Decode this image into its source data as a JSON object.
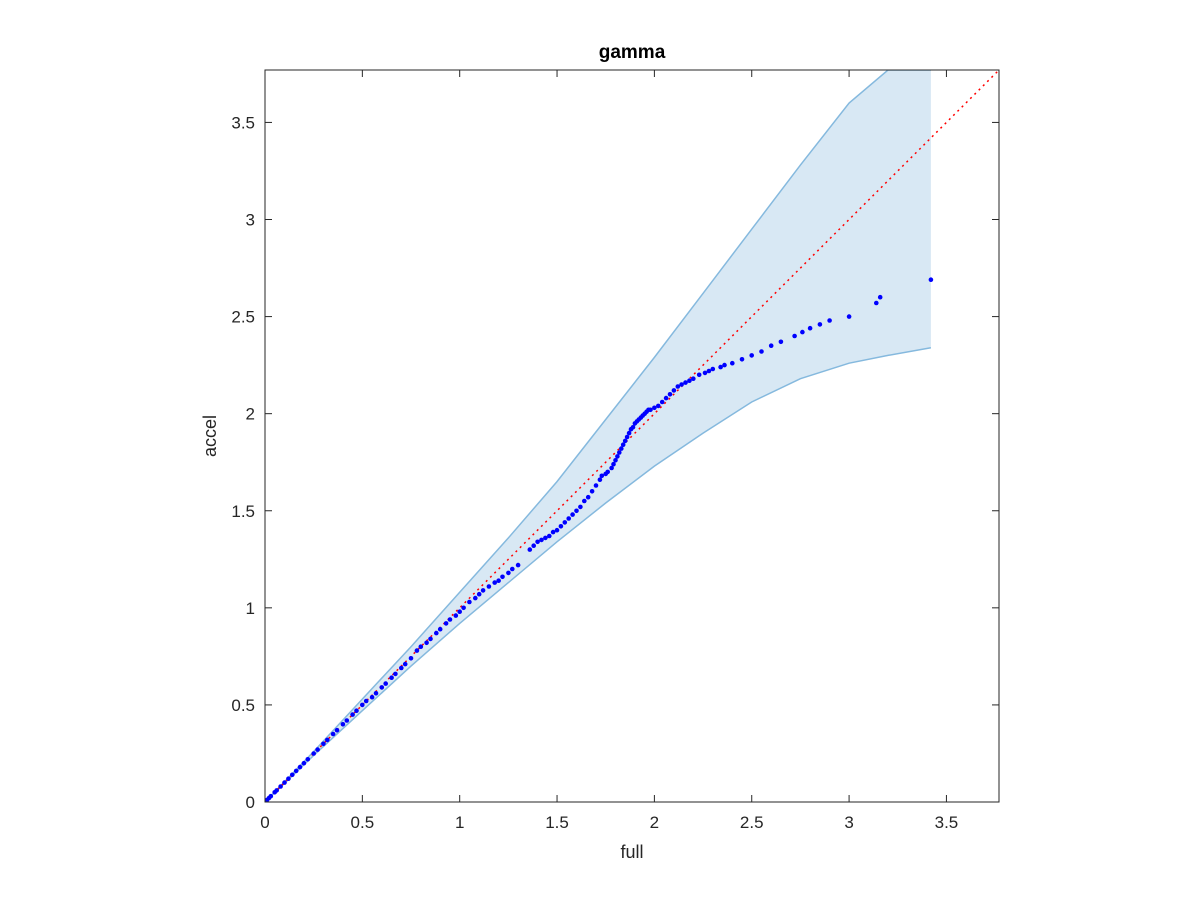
{
  "chart_data": {
    "type": "scatter",
    "title": "gamma",
    "xlabel": "full",
    "ylabel": "accel",
    "xlim": [
      0,
      3.77
    ],
    "ylim": [
      0,
      3.77
    ],
    "xticks": [
      0,
      0.5,
      1,
      1.5,
      2,
      2.5,
      3,
      3.5
    ],
    "yticks": [
      0,
      0.5,
      1,
      1.5,
      2,
      2.5,
      3,
      3.5
    ],
    "xtick_labels": [
      "0",
      "0.5",
      "1",
      "1.5",
      "2",
      "2.5",
      "3",
      "3.5"
    ],
    "ytick_labels": [
      "0",
      "0.5",
      "1",
      "1.5",
      "2",
      "2.5",
      "3",
      "3.5"
    ],
    "grid": false,
    "colors": {
      "points": "#0000ff",
      "reference_line": "#ff0000",
      "band_fill": "#d8e8f4",
      "band_edge": "#85b9de",
      "axes": "#262626"
    },
    "reference_line": {
      "style": "dotted",
      "x": [
        0,
        3.77
      ],
      "y": [
        0,
        3.77
      ]
    },
    "band": {
      "x": [
        0,
        0.25,
        0.5,
        0.75,
        1.0,
        1.25,
        1.5,
        1.75,
        2.0,
        2.25,
        2.5,
        2.75,
        3.0,
        3.2,
        3.42
      ],
      "upper": [
        0,
        0.26,
        0.53,
        0.8,
        1.08,
        1.36,
        1.65,
        1.97,
        2.29,
        2.62,
        2.95,
        3.28,
        3.6,
        3.77,
        3.77
      ],
      "lower": [
        0,
        0.24,
        0.47,
        0.7,
        0.92,
        1.13,
        1.34,
        1.54,
        1.73,
        1.9,
        2.06,
        2.18,
        2.26,
        2.3,
        2.34
      ]
    },
    "series": [
      {
        "x": [
          0.0,
          0.01,
          0.02,
          0.03,
          0.05,
          0.06,
          0.08,
          0.1,
          0.12,
          0.14,
          0.16,
          0.18,
          0.2,
          0.22,
          0.25,
          0.27,
          0.3,
          0.32,
          0.35,
          0.37,
          0.4,
          0.42,
          0.45,
          0.47,
          0.5,
          0.52,
          0.55,
          0.57,
          0.6,
          0.62,
          0.65,
          0.67,
          0.7,
          0.72,
          0.75,
          0.78,
          0.8,
          0.83,
          0.85,
          0.88,
          0.9,
          0.93,
          0.95,
          0.98,
          1.0,
          1.02,
          1.05,
          1.08,
          1.1,
          1.12,
          1.15,
          1.18,
          1.2,
          1.22,
          1.25,
          1.27,
          1.3,
          1.36,
          1.38,
          1.4,
          1.42,
          1.44,
          1.46,
          1.48,
          1.5,
          1.52,
          1.54,
          1.56,
          1.58,
          1.6,
          1.62,
          1.64,
          1.66,
          1.68,
          1.7,
          1.72,
          1.73,
          1.75,
          1.76,
          1.78,
          1.79,
          1.8,
          1.81,
          1.82,
          1.83,
          1.84,
          1.85,
          1.86,
          1.87,
          1.88,
          1.89,
          1.9,
          1.91,
          1.92,
          1.93,
          1.94,
          1.95,
          1.96,
          1.97,
          1.98,
          2.0,
          2.02,
          2.04,
          2.06,
          2.08,
          2.1,
          2.12,
          2.14,
          2.16,
          2.18,
          2.2,
          2.23,
          2.26,
          2.28,
          2.3,
          2.34,
          2.36,
          2.4,
          2.45,
          2.5,
          2.55,
          2.6,
          2.65,
          2.72,
          2.76,
          2.8,
          2.85,
          2.9,
          3.0,
          3.14,
          3.16,
          3.42
        ],
        "y": [
          0.0,
          0.01,
          0.02,
          0.03,
          0.05,
          0.06,
          0.08,
          0.1,
          0.12,
          0.14,
          0.16,
          0.18,
          0.2,
          0.22,
          0.25,
          0.27,
          0.3,
          0.32,
          0.35,
          0.37,
          0.4,
          0.42,
          0.45,
          0.47,
          0.5,
          0.52,
          0.54,
          0.56,
          0.59,
          0.61,
          0.64,
          0.66,
          0.69,
          0.71,
          0.74,
          0.78,
          0.8,
          0.82,
          0.84,
          0.87,
          0.89,
          0.92,
          0.94,
          0.96,
          0.98,
          1.0,
          1.03,
          1.05,
          1.07,
          1.09,
          1.11,
          1.13,
          1.14,
          1.16,
          1.18,
          1.2,
          1.22,
          1.3,
          1.32,
          1.34,
          1.35,
          1.36,
          1.37,
          1.39,
          1.4,
          1.42,
          1.44,
          1.46,
          1.48,
          1.5,
          1.52,
          1.55,
          1.57,
          1.6,
          1.63,
          1.66,
          1.68,
          1.69,
          1.7,
          1.72,
          1.74,
          1.76,
          1.78,
          1.8,
          1.82,
          1.84,
          1.86,
          1.88,
          1.9,
          1.92,
          1.93,
          1.95,
          1.96,
          1.97,
          1.98,
          1.99,
          2.0,
          2.01,
          2.02,
          2.02,
          2.03,
          2.04,
          2.06,
          2.08,
          2.1,
          2.12,
          2.14,
          2.15,
          2.16,
          2.17,
          2.18,
          2.2,
          2.21,
          2.22,
          2.23,
          2.24,
          2.25,
          2.26,
          2.28,
          2.3,
          2.32,
          2.35,
          2.37,
          2.4,
          2.42,
          2.44,
          2.46,
          2.48,
          2.5,
          2.57,
          2.6,
          2.69
        ]
      }
    ]
  }
}
